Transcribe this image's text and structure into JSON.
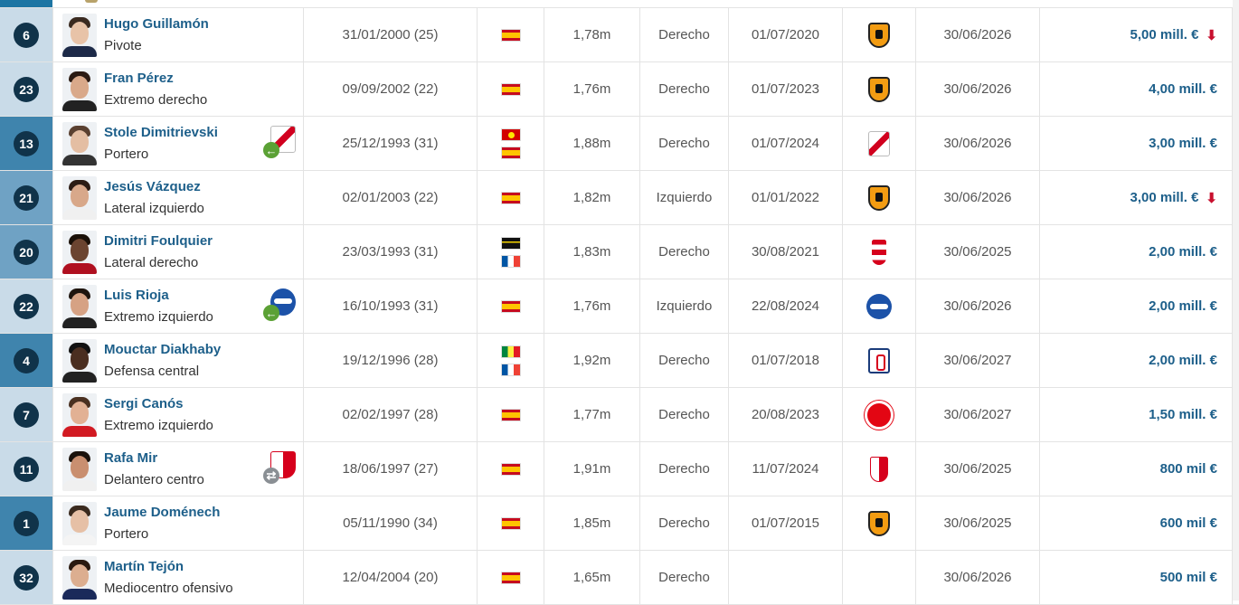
{
  "players": [
    {
      "number": "6",
      "name": "Hugo Guillamón",
      "position": "Pivote",
      "dob": "31/01/2000 (25)",
      "flags": [
        "es"
      ],
      "height": "1,78m",
      "foot": "Derecho",
      "joined": "01/07/2020",
      "club_icon": "valencia-crest",
      "contract": "30/06/2026",
      "value": "5,00 mill. €",
      "trend": "down",
      "num_bg": "#c9dbe8",
      "avatar": {
        "skin": "#e8c3a8",
        "hair": "#3a2a20",
        "shirt": "#1d2a48"
      }
    },
    {
      "number": "23",
      "name": "Fran Pérez",
      "position": "Extremo derecho",
      "dob": "09/09/2002 (22)",
      "flags": [
        "es"
      ],
      "height": "1,76m",
      "foot": "Derecho",
      "joined": "01/07/2023",
      "club_icon": "valencia-crest",
      "contract": "30/06/2026",
      "value": "4,00 mill. €",
      "trend": "",
      "num_bg": "#c9dbe8",
      "avatar": {
        "skin": "#d9a98a",
        "hair": "#2a1a12",
        "shirt": "#222"
      }
    },
    {
      "number": "13",
      "name": "Stole Dimitrievski",
      "position": "Portero",
      "dob": "25/12/1993 (31)",
      "flags": [
        "mk",
        "es"
      ],
      "height": "1,88m",
      "foot": "Derecho",
      "joined": "01/07/2024",
      "club_icon": "rayo-crest",
      "contract": "30/06/2026",
      "value": "3,00 mill. €",
      "trend": "",
      "num_bg": "#3f84ad",
      "loan": {
        "icon": "rayo-crest",
        "arrow": "green"
      },
      "avatar": {
        "skin": "#e4bea3",
        "hair": "#5a4030",
        "shirt": "#333"
      }
    },
    {
      "number": "21",
      "name": "Jesús Vázquez",
      "position": "Lateral izquierdo",
      "dob": "02/01/2003 (22)",
      "flags": [
        "es"
      ],
      "height": "1,82m",
      "foot": "Izquierdo",
      "joined": "01/01/2022",
      "club_icon": "valencia-crest",
      "contract": "30/06/2026",
      "value": "3,00 mill. €",
      "trend": "down",
      "num_bg": "#6fa2c4",
      "avatar": {
        "skin": "#d8a88a",
        "hair": "#2c1c14",
        "shirt": "#f0f0f0"
      }
    },
    {
      "number": "20",
      "name": "Dimitri Foulquier",
      "position": "Lateral derecho",
      "dob": "23/03/1993 (31)",
      "flags": [
        "gp",
        "fr"
      ],
      "height": "1,83m",
      "foot": "Derecho",
      "joined": "30/08/2021",
      "club_icon": "granada-crest",
      "contract": "30/06/2025",
      "value": "2,00 mill. €",
      "trend": "",
      "num_bg": "#6fa2c4",
      "avatar": {
        "skin": "#6b4430",
        "hair": "#1a1008",
        "shirt": "#b01020"
      }
    },
    {
      "number": "22",
      "name": "Luis Rioja",
      "position": "Extremo izquierdo",
      "dob": "16/10/1993 (31)",
      "flags": [
        "es"
      ],
      "height": "1,76m",
      "foot": "Izquierdo",
      "joined": "22/08/2024",
      "club_icon": "alaves-crest",
      "contract": "30/06/2026",
      "value": "2,00 mill. €",
      "trend": "",
      "num_bg": "#c9dbe8",
      "loan": {
        "icon": "alaves-crest",
        "arrow": "green"
      },
      "avatar": {
        "skin": "#d6a284",
        "hair": "#1e140e",
        "shirt": "#222"
      }
    },
    {
      "number": "4",
      "name": "Mouctar Diakhaby",
      "position": "Defensa central",
      "dob": "19/12/1996 (28)",
      "flags": [
        "sn",
        "fr"
      ],
      "height": "1,92m",
      "foot": "Derecho",
      "joined": "01/07/2018",
      "club_icon": "lyon-crest",
      "contract": "30/06/2027",
      "value": "2,00 mill. €",
      "trend": "",
      "num_bg": "#3f84ad",
      "avatar": {
        "skin": "#4a2e20",
        "hair": "#111",
        "shirt": "#222"
      }
    },
    {
      "number": "7",
      "name": "Sergi Canós",
      "position": "Extremo izquierdo",
      "dob": "02/02/1997 (28)",
      "flags": [
        "es"
      ],
      "height": "1,77m",
      "foot": "Derecho",
      "joined": "20/08/2023",
      "club_icon": "brentford-crest",
      "contract": "30/06/2027",
      "value": "1,50 mill. €",
      "trend": "",
      "num_bg": "#c9dbe8",
      "avatar": {
        "skin": "#e2b194",
        "hair": "#4a3020",
        "shirt": "#d21a22"
      }
    },
    {
      "number": "11",
      "name": "Rafa Mir",
      "position": "Delantero centro",
      "dob": "18/06/1997 (27)",
      "flags": [
        "es"
      ],
      "height": "1,91m",
      "foot": "Derecho",
      "joined": "11/07/2024",
      "club_icon": "sevilla-crest",
      "contract": "30/06/2025",
      "value": "800 mil €",
      "trend": "",
      "num_bg": "#c9dbe8",
      "loan": {
        "icon": "sevilla-crest",
        "arrow": "grey"
      },
      "avatar": {
        "skin": "#c98f70",
        "hair": "#1a120c",
        "shirt": "#f0f0f0"
      }
    },
    {
      "number": "1",
      "name": "Jaume Doménech",
      "position": "Portero",
      "dob": "05/11/1990 (34)",
      "flags": [
        "es"
      ],
      "height": "1,85m",
      "foot": "Derecho",
      "joined": "01/07/2015",
      "club_icon": "valencia-crest",
      "contract": "30/06/2025",
      "value": "600 mil €",
      "trend": "",
      "num_bg": "#3f84ad",
      "avatar": {
        "skin": "#e6c0a6",
        "hair": "#3a2a1e",
        "shirt": "#f4f4f4"
      }
    },
    {
      "number": "32",
      "name": "Martín Tejón",
      "position": "Mediocentro ofensivo",
      "dob": "12/04/2004 (20)",
      "flags": [
        "es"
      ],
      "height": "1,65m",
      "foot": "Derecho",
      "joined": "",
      "club_icon": "",
      "contract": "30/06/2026",
      "value": "500 mil €",
      "trend": "",
      "num_bg": "#c9dbe8",
      "avatar": {
        "skin": "#dcae90",
        "hair": "#2a1a10",
        "shirt": "#1a2a5a"
      }
    }
  ]
}
